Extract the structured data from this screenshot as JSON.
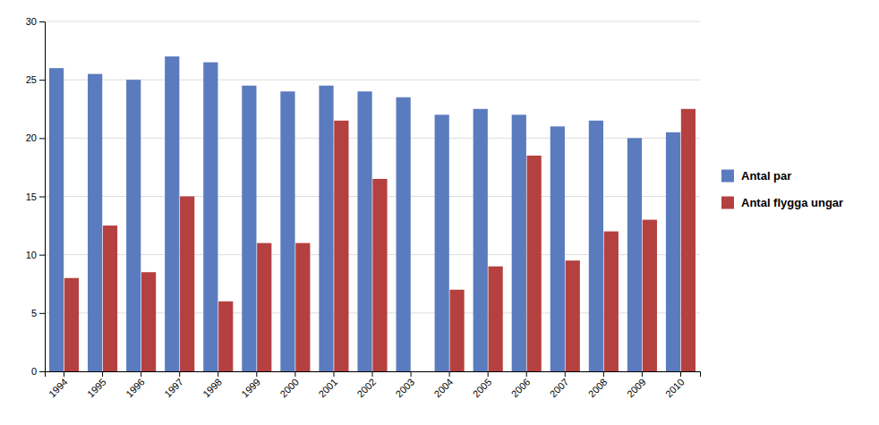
{
  "chart_data": {
    "type": "bar",
    "categories": [
      "1994",
      "1995",
      "1996",
      "1997",
      "1998",
      "1999",
      "2000",
      "2001",
      "2002",
      "2003",
      "2004",
      "2005",
      "2006",
      "2007",
      "2008",
      "2009",
      "2010"
    ],
    "series": [
      {
        "name": "Antal par",
        "color": "#5B7BBF",
        "values": [
          26,
          25.5,
          25,
          27,
          26.5,
          24.5,
          24,
          24.5,
          24,
          23.5,
          22,
          22.5,
          22,
          21,
          21.5,
          20,
          20.5
        ]
      },
      {
        "name": "Antal flygga ungar",
        "color": "#B54040",
        "values": [
          8,
          12.5,
          8.5,
          15,
          6,
          11,
          11,
          21.5,
          16.5,
          0,
          7,
          9,
          18.5,
          9.5,
          12,
          13,
          22.5
        ]
      }
    ],
    "ylim": [
      0,
      30
    ],
    "yticks": [
      0,
      5,
      10,
      15,
      20,
      25,
      30
    ],
    "grid": true,
    "legend": "right"
  }
}
